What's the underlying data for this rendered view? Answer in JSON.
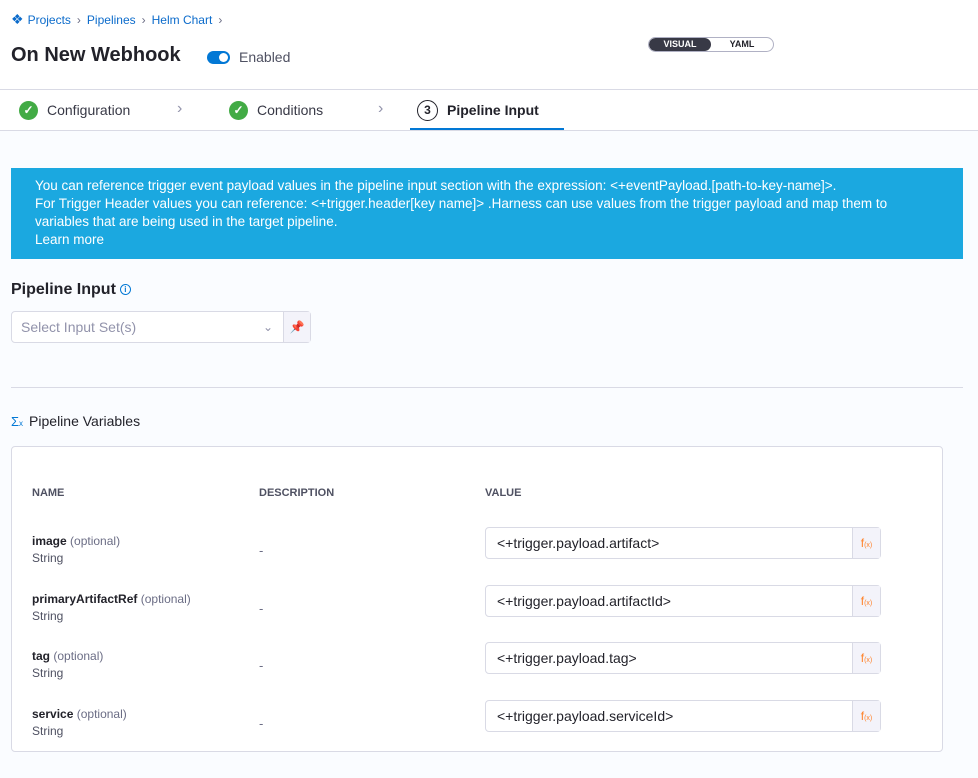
{
  "breadcrumbs": [
    "Projects",
    "Pipelines",
    "Helm Chart"
  ],
  "title": "On New Webhook",
  "toggle": {
    "label": "Enabled",
    "on": true
  },
  "view_toggle": {
    "visual": "VISUAL",
    "yaml": "YAML",
    "selected": "VISUAL"
  },
  "steps": [
    {
      "label": "Configuration",
      "status": "done"
    },
    {
      "label": "Conditions",
      "status": "done"
    },
    {
      "label": "Pipeline Input",
      "number": "3",
      "status": "active"
    }
  ],
  "banner": {
    "line1": "You can reference trigger event payload values in the pipeline input section with the expression: <+eventPayload.[path-to-key-name]>.",
    "line2": "For Trigger Header values you can reference: <+trigger.header[key name]> .Harness can use values from the trigger payload and map them to variables that are being used in the target pipeline.",
    "link": "Learn more"
  },
  "pipeline_input": {
    "title": "Pipeline Input",
    "placeholder": "Select Input Set(s)"
  },
  "variables": {
    "title": "Pipeline Variables",
    "headers": {
      "name": "NAME",
      "description": "DESCRIPTION",
      "value": "VALUE"
    },
    "rows": [
      {
        "name": "image",
        "optional": "(optional)",
        "type": "String",
        "description": "-",
        "value": "<+trigger.payload.artifact>"
      },
      {
        "name": "primaryArtifactRef",
        "optional": "(optional)",
        "type": "String",
        "description": "-",
        "value": "<+trigger.payload.artifactId>"
      },
      {
        "name": "tag",
        "optional": "(optional)",
        "type": "String",
        "description": "-",
        "value": "<+trigger.payload.tag>"
      },
      {
        "name": "service",
        "optional": "(optional)",
        "type": "String",
        "description": "-",
        "value": "<+trigger.payload.serviceId>"
      }
    ]
  },
  "colors": {
    "accent": "#0278d5",
    "banner": "#1ba8e0",
    "success": "#42ab45",
    "fx": "#ff832b"
  }
}
